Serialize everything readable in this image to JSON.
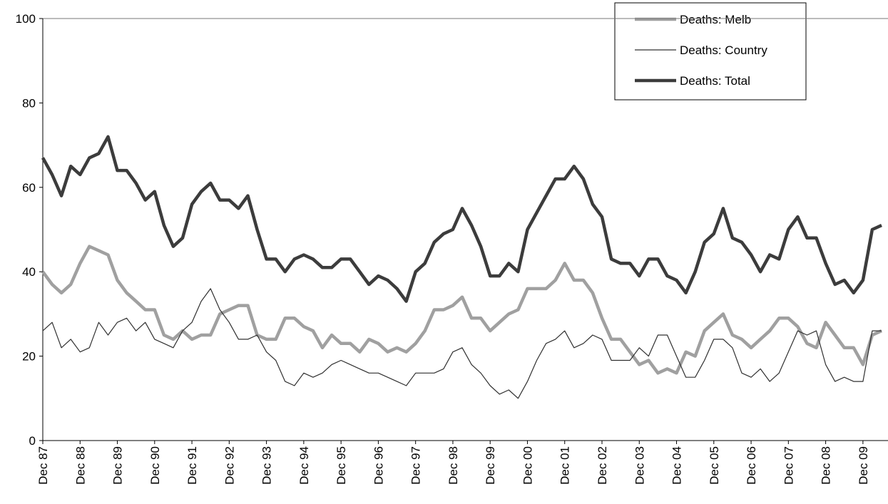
{
  "chart_data": {
    "type": "line",
    "categories": [
      "Dec 87",
      null,
      null,
      null,
      "Dec 88",
      null,
      null,
      null,
      "Dec 89",
      null,
      null,
      null,
      "Dec 90",
      null,
      null,
      null,
      "Dec 91",
      null,
      null,
      null,
      "Dec 92",
      null,
      null,
      null,
      "Dec 93",
      null,
      null,
      null,
      "Dec 94",
      null,
      null,
      null,
      "Dec 95",
      null,
      null,
      null,
      "Dec 96",
      null,
      null,
      null,
      "Dec 97",
      null,
      null,
      null,
      "Dec 98",
      null,
      null,
      null,
      "Dec 99",
      null,
      null,
      null,
      "Dec 00",
      null,
      null,
      null,
      "Dec 01",
      null,
      null,
      null,
      "Dec 02",
      null,
      null,
      null,
      "Dec 03",
      null,
      null,
      null,
      "Dec 04",
      null,
      null,
      null,
      "Dec 05",
      null,
      null,
      null,
      "Dec 06",
      null,
      null,
      null,
      "Dec 07",
      null,
      null,
      null,
      "Dec 08",
      null,
      null,
      null,
      "Dec 09",
      null,
      null
    ],
    "series": [
      {
        "name": "Deaths: Melb",
        "color": "#a0a0a0",
        "values": [
          40,
          37,
          35,
          37,
          42,
          46,
          45,
          44,
          38,
          35,
          33,
          31,
          31,
          25,
          24,
          26,
          24,
          25,
          25,
          30,
          31,
          32,
          32,
          25,
          24,
          24,
          29,
          29,
          27,
          26,
          22,
          25,
          23,
          23,
          21,
          24,
          23,
          21,
          22,
          21,
          23,
          26,
          31,
          31,
          32,
          34,
          29,
          29,
          26,
          28,
          30,
          31,
          36,
          36,
          36,
          38,
          42,
          38,
          38,
          35,
          29,
          24,
          24,
          21,
          18,
          19,
          16,
          17,
          16,
          21,
          20,
          26,
          28,
          30,
          25,
          24,
          22,
          24,
          26,
          29,
          29,
          27,
          23,
          22,
          28,
          25,
          22,
          22,
          18,
          25,
          26
        ]
      },
      {
        "name": "Deaths: Country",
        "color": "#303030",
        "values": [
          26,
          28,
          22,
          24,
          21,
          22,
          28,
          25,
          28,
          29,
          26,
          28,
          24,
          23,
          22,
          26,
          28,
          33,
          36,
          31,
          28,
          24,
          24,
          25,
          21,
          19,
          14,
          13,
          16,
          15,
          16,
          18,
          19,
          18,
          17,
          16,
          16,
          15,
          14,
          13,
          16,
          16,
          16,
          17,
          21,
          22,
          18,
          16,
          13,
          11,
          12,
          10,
          14,
          19,
          23,
          24,
          26,
          22,
          23,
          25,
          24,
          19,
          19,
          19,
          22,
          20,
          25,
          25,
          20,
          15,
          15,
          19,
          24,
          24,
          22,
          16,
          15,
          17,
          14,
          16,
          21,
          26,
          25,
          26,
          18,
          14,
          15,
          14,
          14,
          26,
          26
        ]
      },
      {
        "name": "Deaths: Total",
        "color": "#3c3c3c",
        "values": [
          67,
          63,
          58,
          65,
          63,
          67,
          68,
          72,
          64,
          64,
          61,
          57,
          59,
          51,
          46,
          48,
          56,
          59,
          61,
          57,
          57,
          55,
          58,
          50,
          43,
          43,
          40,
          43,
          44,
          43,
          41,
          41,
          43,
          43,
          40,
          37,
          39,
          38,
          36,
          33,
          40,
          42,
          47,
          49,
          50,
          55,
          51,
          46,
          39,
          39,
          42,
          40,
          50,
          54,
          58,
          62,
          62,
          65,
          62,
          56,
          53,
          43,
          42,
          42,
          39,
          43,
          43,
          39,
          38,
          35,
          40,
          47,
          49,
          55,
          48,
          47,
          44,
          40,
          44,
          43,
          50,
          53,
          48,
          48,
          42,
          37,
          38,
          35,
          38,
          50,
          51
        ]
      }
    ],
    "ylim": [
      0,
      100
    ],
    "yticks": [
      0,
      20,
      40,
      60,
      80,
      100
    ],
    "grid": false,
    "legend": "top-right"
  }
}
